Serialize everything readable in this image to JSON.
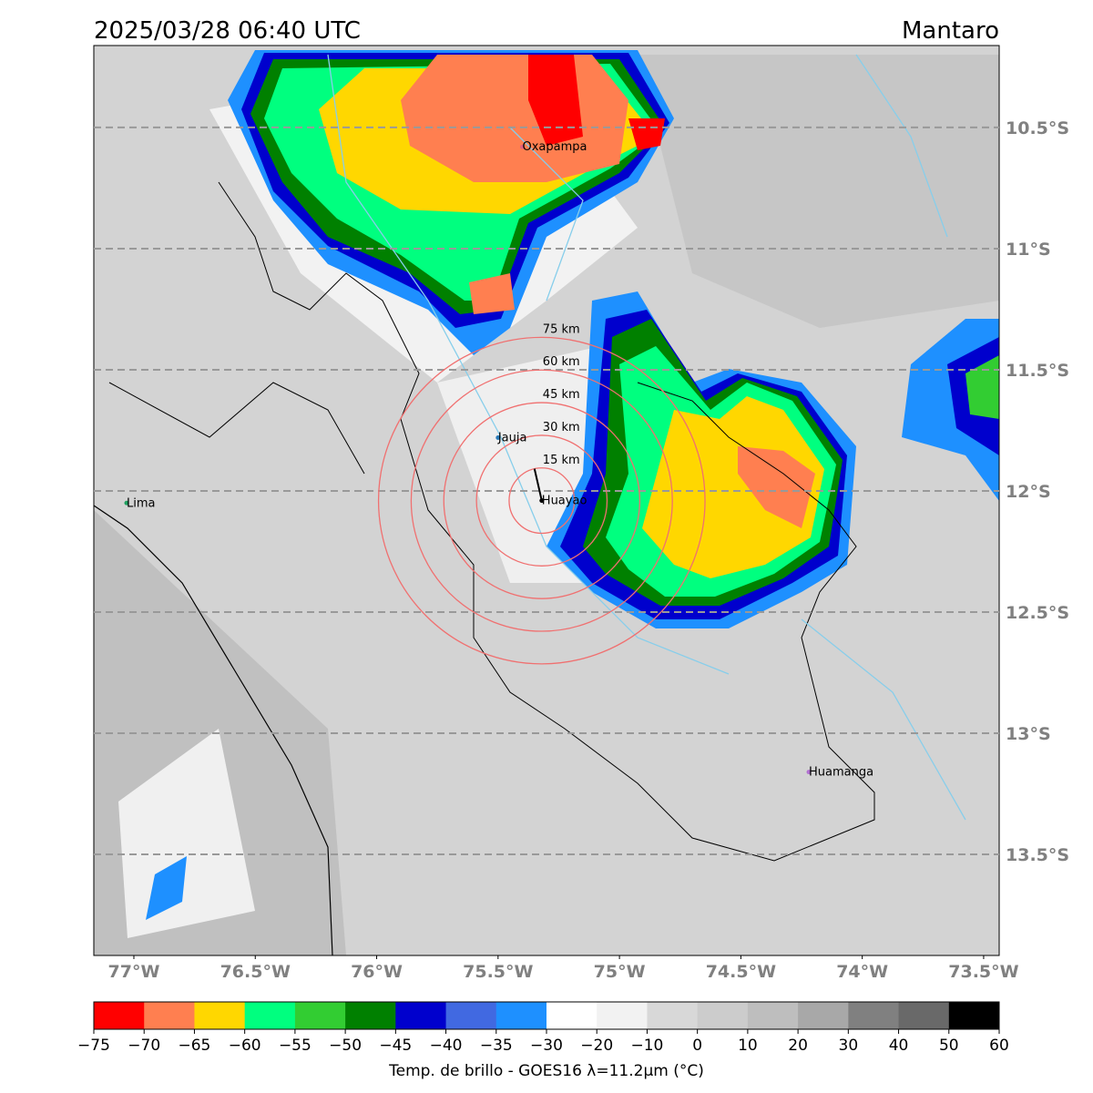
{
  "map": {
    "title": "2025/03/28 06:40 UTC",
    "title_right": "Mantaro",
    "xlim": [
      -77.165,
      -73.436
    ],
    "ylim": [
      -13.917,
      -10.162
    ],
    "xticks": [
      {
        "value": -77,
        "label": "77°W"
      },
      {
        "value": -76.5,
        "label": "76.5°W"
      },
      {
        "value": -76,
        "label": "76°W"
      },
      {
        "value": -75.5,
        "label": "75.5°W"
      },
      {
        "value": -75,
        "label": "75°W"
      },
      {
        "value": -74.5,
        "label": "74.5°W"
      },
      {
        "value": -74,
        "label": "74°W"
      },
      {
        "value": -73.5,
        "label": "73.5°W"
      }
    ],
    "yticks": [
      {
        "value": -10.5,
        "label": "10.5°S"
      },
      {
        "value": -11,
        "label": "11°S"
      },
      {
        "value": -11.5,
        "label": "11.5°S"
      },
      {
        "value": -12,
        "label": "12°S"
      },
      {
        "value": -12.5,
        "label": "12.5°S"
      },
      {
        "value": -13,
        "label": "13°S"
      },
      {
        "value": -13.5,
        "label": "13.5°S"
      }
    ],
    "cities": [
      {
        "name": "Oxapampa",
        "lon": -75.4,
        "lat": -10.58,
        "color": "#e0607e"
      },
      {
        "name": "Jauja",
        "lon": -75.5,
        "lat": -11.78,
        "color": "#2a7ab8"
      },
      {
        "name": "Huayao",
        "lon": -75.32,
        "lat": -12.04,
        "color": "#000000"
      },
      {
        "name": "Lima",
        "lon": -77.03,
        "lat": -12.05,
        "color": "#20a060"
      },
      {
        "name": "Huamanga",
        "lon": -74.22,
        "lat": -13.16,
        "color": "#b070d0"
      }
    ],
    "rings": [
      {
        "km": 15,
        "label": "15 km"
      },
      {
        "km": 30,
        "label": "30 km"
      },
      {
        "km": 45,
        "label": "45 km"
      },
      {
        "km": 60,
        "label": "60 km"
      },
      {
        "km": 75,
        "label": "75 km"
      }
    ],
    "colorbar": {
      "label": "Temp. de brillo - GOES16 λ=11.2µm (°C)",
      "ticks": [
        {
          "value": -75,
          "label": "−75"
        },
        {
          "value": -70,
          "label": "−70"
        },
        {
          "value": -65,
          "label": "−65"
        },
        {
          "value": -60,
          "label": "−60"
        },
        {
          "value": -55,
          "label": "−55"
        },
        {
          "value": -50,
          "label": "−50"
        },
        {
          "value": -45,
          "label": "−45"
        },
        {
          "value": -40,
          "label": "−40"
        },
        {
          "value": -35,
          "label": "−35"
        },
        {
          "value": -30,
          "label": "−30"
        },
        {
          "value": -20,
          "label": "−20"
        },
        {
          "value": -10,
          "label": "−10"
        },
        0,
        10,
        20,
        30,
        40,
        50,
        60
      ],
      "colors": [
        "#ff0000",
        "#ff7f50",
        "#ffd700",
        "#00ff7f",
        "#32cd32",
        "#008000",
        "#0000cd",
        "#4169e1",
        "#1e90ff",
        "#ffffff",
        "#f2f2f2",
        "#d8d8d8",
        "#cccccc",
        "#bebebe",
        "#a8a8a8",
        "#808080",
        "#696969",
        "#000000"
      ]
    }
  }
}
